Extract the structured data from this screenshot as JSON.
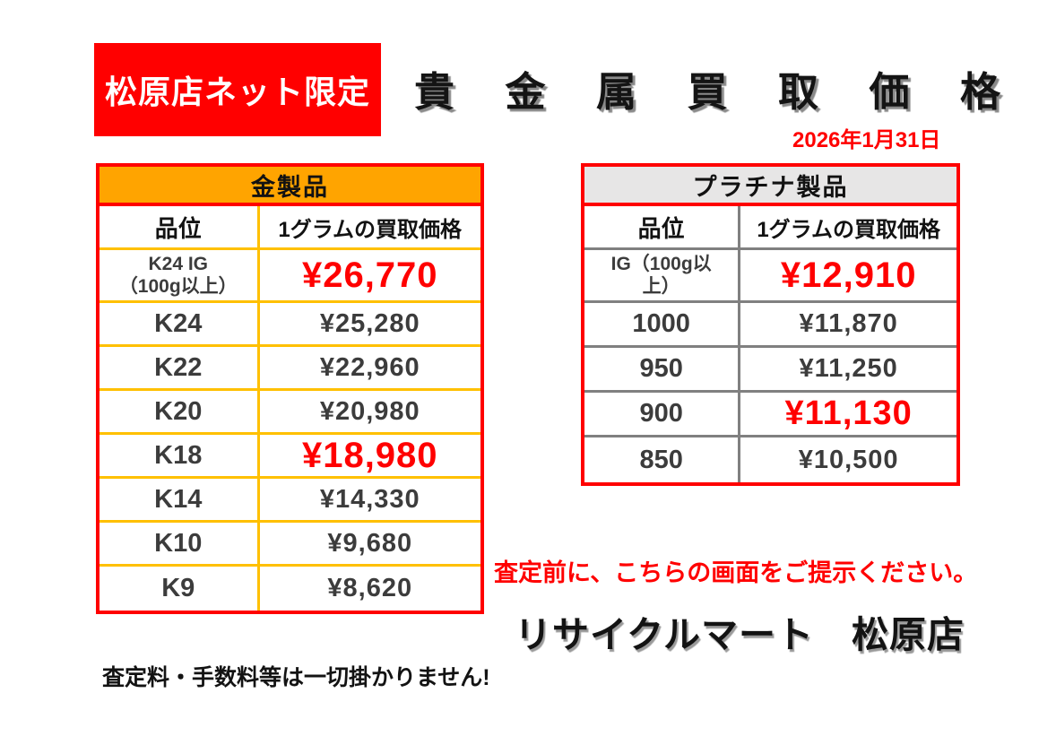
{
  "banner": {
    "label": "松原店ネット限定"
  },
  "title": "貴 金 属 買 取 価 格",
  "date": "2026年1月31日",
  "tables": {
    "gold": {
      "title": "金製品",
      "columns": {
        "grade": "品位",
        "price": "1グラムの買取価格"
      },
      "rows": [
        {
          "grade": "K24 IG\n（100g以上）",
          "price": "¥26,770",
          "highlight": true
        },
        {
          "grade": "K24",
          "price": "¥25,280",
          "highlight": false
        },
        {
          "grade": "K22",
          "price": "¥22,960",
          "highlight": false
        },
        {
          "grade": "K20",
          "price": "¥20,980",
          "highlight": false
        },
        {
          "grade": "K18",
          "price": "¥18,980",
          "highlight": true
        },
        {
          "grade": "K14",
          "price": "¥14,330",
          "highlight": false
        },
        {
          "grade": "K10",
          "price": "¥9,680",
          "highlight": false
        },
        {
          "grade": "K9",
          "price": "¥8,620",
          "highlight": false
        }
      ]
    },
    "platinum": {
      "title": "プラチナ製品",
      "columns": {
        "grade": "品位",
        "price": "1グラムの買取価格"
      },
      "rows": [
        {
          "grade": "IG（100g以\n上）",
          "price": "¥12,910",
          "highlight": true
        },
        {
          "grade": "1000",
          "price": "¥11,870",
          "highlight": false
        },
        {
          "grade": "950",
          "price": "¥11,250",
          "highlight": false
        },
        {
          "grade": "900",
          "price": "¥11,130",
          "highlight": true
        },
        {
          "grade": "850",
          "price": "¥10,500",
          "highlight": false
        }
      ]
    }
  },
  "notices": {
    "present_screen": "査定前に、こちらの画面をご提示ください。",
    "store_name": "リサイクルマート　松原店",
    "no_fees": "査定料・手数料等は一切掛かりません!"
  },
  "colors": {
    "accent_red": "#FF0000",
    "gold_header_bg": "#FFA400",
    "gold_grid": "#FFC000",
    "platinum_header_bg": "#E7E6E6",
    "platinum_grid": "#808080",
    "highlight_price": "#FF0000",
    "regular_text": "#3C3C3C"
  }
}
